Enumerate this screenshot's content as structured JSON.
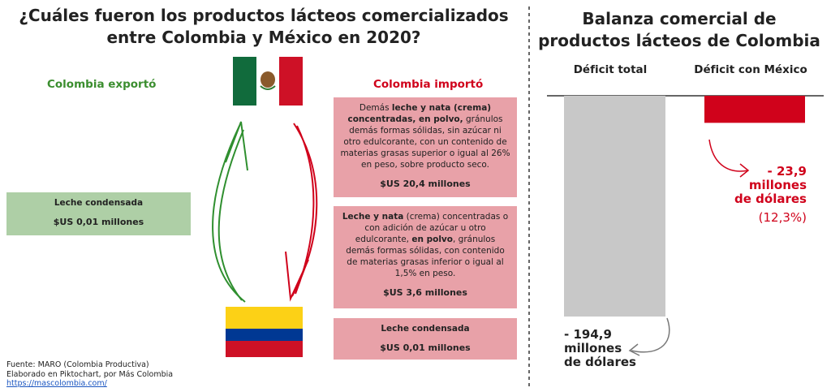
{
  "left": {
    "title": "¿Cuáles fueron los productos lácteos comercializados entre Colombia y México en 2020?",
    "exported_heading": "Colombia exportó",
    "imported_heading": "Colombia importó",
    "exported": [
      {
        "description": [
          {
            "text": "Leche condensada",
            "bold": true
          }
        ],
        "amount": "$US 0,01 millones"
      }
    ],
    "imported": [
      {
        "description": [
          {
            "text": "Demás "
          },
          {
            "text": "leche y nata (crema) concentradas, en polvo,",
            "bold": true
          },
          {
            "text": " gránulos demás formas sólidas, sin azúcar ni otro edulcorante, con un contenido de materias grasas superior o igual al 26% en peso, sobre producto seco."
          }
        ],
        "amount": "$US 20,4 millones"
      },
      {
        "description": [
          {
            "text": "Leche y nata",
            "bold": true
          },
          {
            "text": " (crema) concentradas o con adición de azúcar u otro edulcorante, "
          },
          {
            "text": "en polvo",
            "bold": true
          },
          {
            "text": ", gránulos demás formas sólidas, con contenido de materias grasas inferior o igual al 1,5% en peso."
          }
        ],
        "amount": "$US 3,6 millones"
      },
      {
        "description": [
          {
            "text": "Leche condensada",
            "bold": true
          }
        ],
        "amount": "$US 0,01 millones"
      }
    ]
  },
  "right": {
    "title": "Balanza comercial de productos lácteos de Colombia",
    "chart": {
      "type": "bar",
      "categories": [
        "Déficit total",
        "Déficit con México"
      ],
      "values": [
        -194.9,
        -23.9
      ],
      "value_labels": [
        "- 194,9\nmillones\nde dólares",
        "- 23,9\nmillones\nde dólares"
      ],
      "colors": [
        "#c8c8c8",
        "#d0021b"
      ],
      "share_label": "(12,3%)"
    }
  },
  "footer": {
    "source": "Fuente: MARO (Colombia Productiva)",
    "credit": "Elaborado en Piktochart, por Más Colombia",
    "link": "https://mascolombia.com/"
  }
}
